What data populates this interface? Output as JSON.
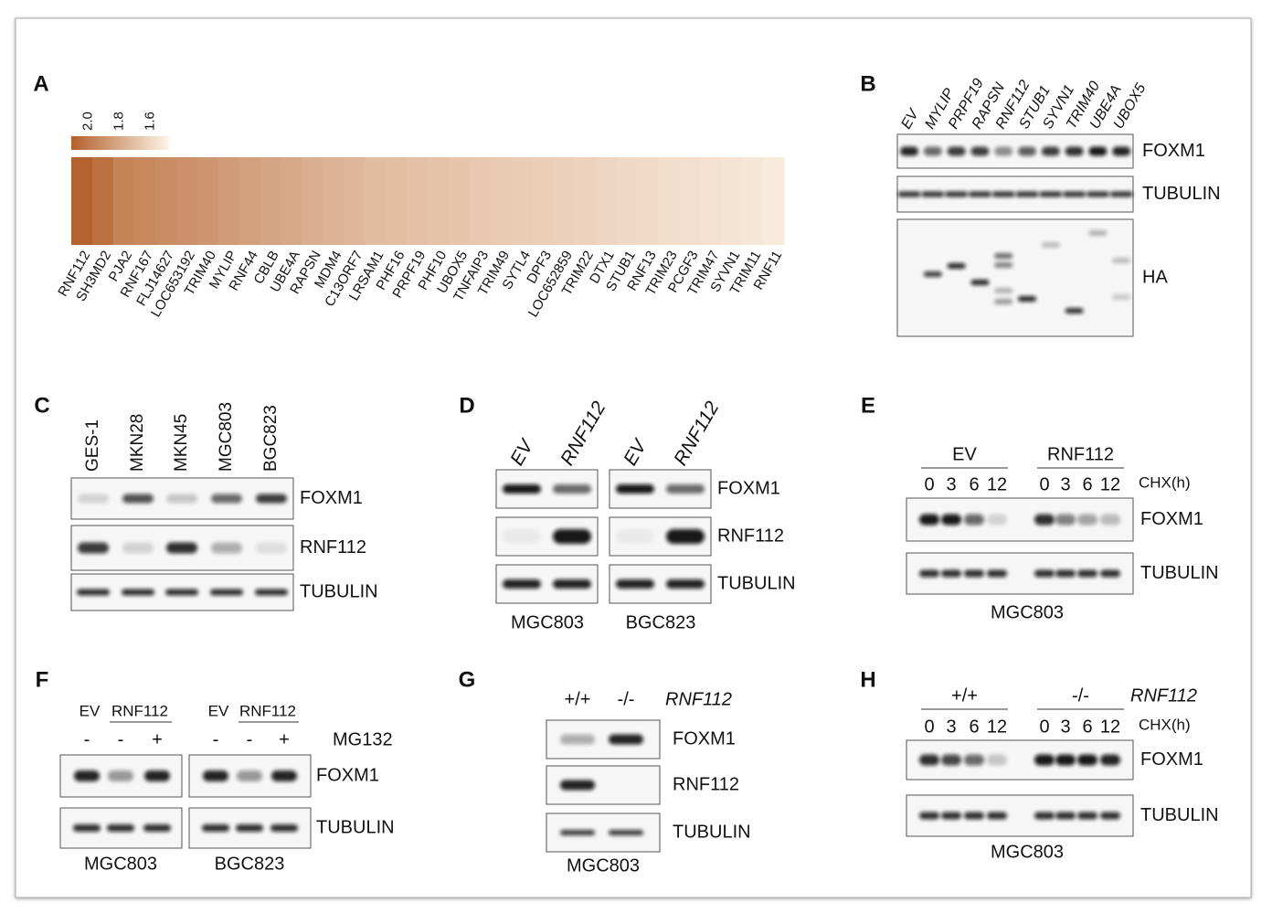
{
  "A": {
    "label": "A",
    "colorbar": {
      "clim": [
        2.11,
        1.48
      ],
      "ticks": [
        {
          "value": 2,
          "label": "2.0"
        },
        1.8,
        1.6
      ]
    },
    "heatmap": {
      "colors": [
        "#b3602b",
        "#fdf4e8"
      ],
      "genes": [
        "RNF112",
        "SH3MD2",
        "PJA2",
        "RNF167",
        "FLJ14627",
        "LOC653192",
        "TRIM40",
        "MYLIP",
        "RNF44",
        "CBLB",
        "UBE4A",
        "RAPSN",
        "MDM4",
        "C13ORF7",
        "LRSAM1",
        "PHF16",
        "PRPF19",
        "PHF10",
        "UBOX5",
        "TNFAIP3",
        "TRIM49",
        "SYTL4",
        "DPF3",
        "LOC652859",
        "TRIM22",
        "DTX1",
        "STUB1",
        "RNF13",
        "TRIM23",
        "PCGF3",
        "TRIM47",
        "SYVN1",
        "TRIM11",
        "RNF11"
      ],
      "values": [
        2.1,
        2.04,
        1.96,
        1.94,
        1.92,
        1.9,
        1.88,
        1.86,
        1.84,
        1.82,
        1.8,
        1.78,
        1.76,
        1.74,
        1.72,
        1.71,
        1.7,
        1.69,
        1.68,
        1.67,
        1.66,
        1.65,
        1.64,
        1.63,
        1.62,
        1.61,
        1.6,
        1.59,
        1.58,
        1.57,
        1.56,
        1.55,
        1.54,
        1.52
      ]
    }
  },
  "B": {
    "label": "B",
    "lanes": [
      "EV",
      "MYLIP",
      "PRPF19",
      "RAPSN",
      "RNF112",
      "STUB1",
      "SYVN1",
      "TRIM40",
      "UBE4A",
      "UBOX5"
    ],
    "rows": [
      "FOXM1",
      "TUBULIN",
      "HA"
    ]
  },
  "C": {
    "label": "C",
    "lanes": [
      "GES-1",
      "MKN28",
      "MKN45",
      "MGC803",
      "BGC823"
    ],
    "rows": [
      "FOXM1",
      "RNF112",
      "TUBULIN"
    ]
  },
  "D": {
    "label": "D",
    "blots": [
      {
        "lanes": [
          "EV",
          "RNF112"
        ],
        "cell_line": "MGC803"
      },
      {
        "lanes": [
          "EV",
          "RNF112"
        ],
        "cell_line": "BGC823"
      }
    ],
    "rows": [
      "FOXM1",
      "RNF112",
      "TUBULIN"
    ]
  },
  "E": {
    "label": "E",
    "groups": [
      {
        "name": "EV",
        "timepoints": [
          0,
          3,
          6,
          12
        ]
      },
      {
        "name": "RNF112",
        "timepoints": [
          0,
          3,
          6,
          12
        ]
      }
    ],
    "treatment": "CHX(h)",
    "rows": [
      "FOXM1",
      "TUBULIN"
    ],
    "cell_line": "MGC803"
  },
  "F": {
    "label": "F",
    "blots": [
      {
        "lanes": [
          "EV",
          "RNF112"
        ],
        "mg132": [
          "-",
          "-",
          "+"
        ],
        "cell_line": "MGC803"
      },
      {
        "lanes": [
          "EV",
          "RNF112"
        ],
        "mg132": [
          "-",
          "-",
          "+"
        ],
        "cell_line": "BGC823"
      }
    ],
    "treatment": "MG132",
    "rows": [
      "FOXM1",
      "TUBULIN"
    ]
  },
  "G": {
    "label": "G",
    "genotypes": [
      "+/+",
      "-/-"
    ],
    "gene": "RNF112",
    "rows": [
      "FOXM1",
      "RNF112",
      "TUBULIN"
    ],
    "cell_line": "MGC803"
  },
  "H": {
    "label": "H",
    "groups": [
      {
        "name": "+/+",
        "timepoints": [
          0,
          3,
          6,
          12
        ]
      },
      {
        "name": "-/-",
        "timepoints": [
          0,
          3,
          6,
          12
        ]
      }
    ],
    "gene": "RNF112",
    "treatment": "CHX(h)",
    "rows": [
      "FOXM1",
      "TUBULIN"
    ],
    "cell_line": "MGC803"
  }
}
